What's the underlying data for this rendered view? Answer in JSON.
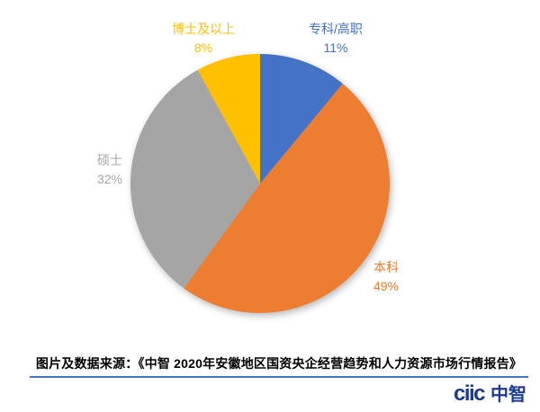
{
  "chart_data": {
    "type": "pie",
    "title": "",
    "categories": [
      "专科/高职",
      "本科",
      "硕士",
      "博士及以上"
    ],
    "values": [
      11,
      49,
      32,
      8
    ],
    "unit": "%",
    "colors": [
      "#4472C4",
      "#ED7D31",
      "#A5A5A5",
      "#FFC000"
    ],
    "start_angle_deg": 0,
    "direction": "clockwise",
    "legend": "none",
    "labels": [
      {
        "name": "专科/高职",
        "pct": "11%",
        "color": "#4472C4"
      },
      {
        "name": "本科",
        "pct": "49%",
        "color": "#ED7D31"
      },
      {
        "name": "硕士",
        "pct": "32%",
        "color": "#A5A5A5"
      },
      {
        "name": "博士及以上",
        "pct": "8%",
        "color": "#FFC000"
      }
    ]
  },
  "caption": {
    "text": "图片及数据来源：《中智 2020年安徽地区国资央企经营趋势和人力资源市场行情报告》",
    "underline_color": "#4472C4"
  },
  "logo": {
    "wordmark": "ciic",
    "cjk": "中智",
    "color": "#1B3A91"
  }
}
